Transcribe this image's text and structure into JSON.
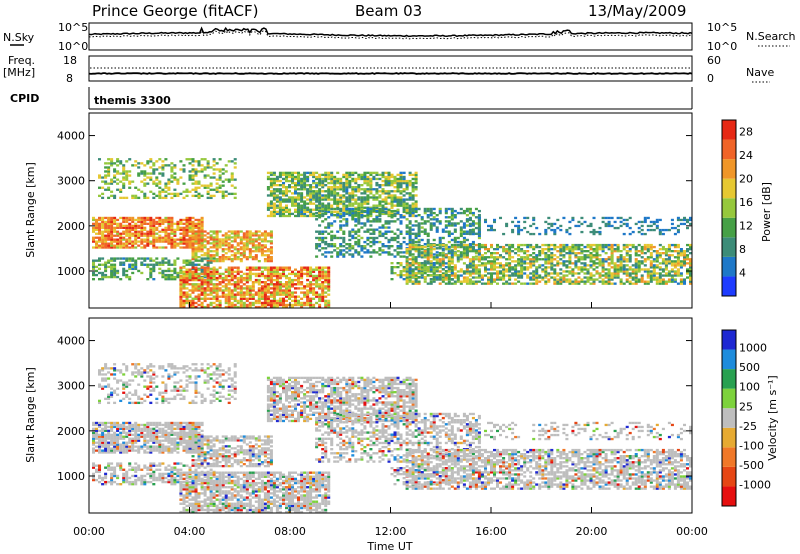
{
  "header": {
    "station": "Prince George (fitACF)",
    "beam": "Beam 03",
    "date": "13/May/2009"
  },
  "labels": {
    "nsky": "N.Sky",
    "nsearch": "N.Search",
    "freq": "Freq.",
    "mhz": "[MHz]",
    "nave": "Nave",
    "cpid": "CPID",
    "cpid_value": "themis 3300",
    "slant_range": "Slant Range [km]",
    "time_ut": "Time UT",
    "power_label": "Power [dB]",
    "velocity_label": "Velocity [m s⁻¹]"
  },
  "colors": {
    "power_scale": [
      "#1e3cff",
      "#1e78c8",
      "#3c8c78",
      "#46a046",
      "#96c83c",
      "#e6c832",
      "#f09628",
      "#f06428",
      "#e62814"
    ],
    "velocity_scale": [
      "#1e28d2",
      "#1e8cdc",
      "#28a050",
      "#7dd23c",
      "#bebebe",
      "#e6aa32",
      "#f07828",
      "#e64614",
      "#e60f0f"
    ],
    "ground_scatter": "#bebebe"
  },
  "chart_data": [
    {
      "type": "line",
      "name": "noise-panel",
      "ylabel_left": [
        "N.Sky"
      ],
      "yticks_left": [
        "10^5",
        "10^0"
      ],
      "yticks_right": [
        "10^5",
        "10^0"
      ],
      "legend_right": "N.Search"
    },
    {
      "type": "line",
      "name": "frequency-panel",
      "ylabel_left": [
        "Freq.",
        "[MHz]"
      ],
      "yticks_left": [
        18,
        8
      ],
      "yticks_right": [
        60,
        0
      ],
      "legend_right": "Nave",
      "freq_value_mhz": 10
    },
    {
      "type": "heatmap",
      "name": "power-panel",
      "ylabel": "Slant Range [km]",
      "yticks": [
        1000,
        2000,
        3000,
        4000
      ],
      "ylim": [
        180,
        4500
      ],
      "xlim_hours": [
        0,
        24
      ],
      "colorbar": {
        "label": "Power [dB]",
        "ticks": [
          4,
          8,
          12,
          16,
          20,
          24,
          28
        ],
        "range": [
          0,
          30
        ]
      }
    },
    {
      "type": "heatmap",
      "name": "velocity-panel",
      "ylabel": "Slant Range [km]",
      "yticks": [
        1000,
        2000,
        3000,
        4000
      ],
      "ylim": [
        180,
        4500
      ],
      "xlim_hours": [
        0,
        24
      ],
      "xticks": [
        "00:00",
        "04:00",
        "08:00",
        "12:00",
        "16:00",
        "20:00",
        "00:00"
      ],
      "xlabel": "Time UT",
      "colorbar": {
        "label": "Velocity [m s⁻¹]",
        "ticks": [
          1000,
          500,
          100,
          25,
          -25,
          -100,
          -500,
          -1000
        ]
      }
    }
  ]
}
